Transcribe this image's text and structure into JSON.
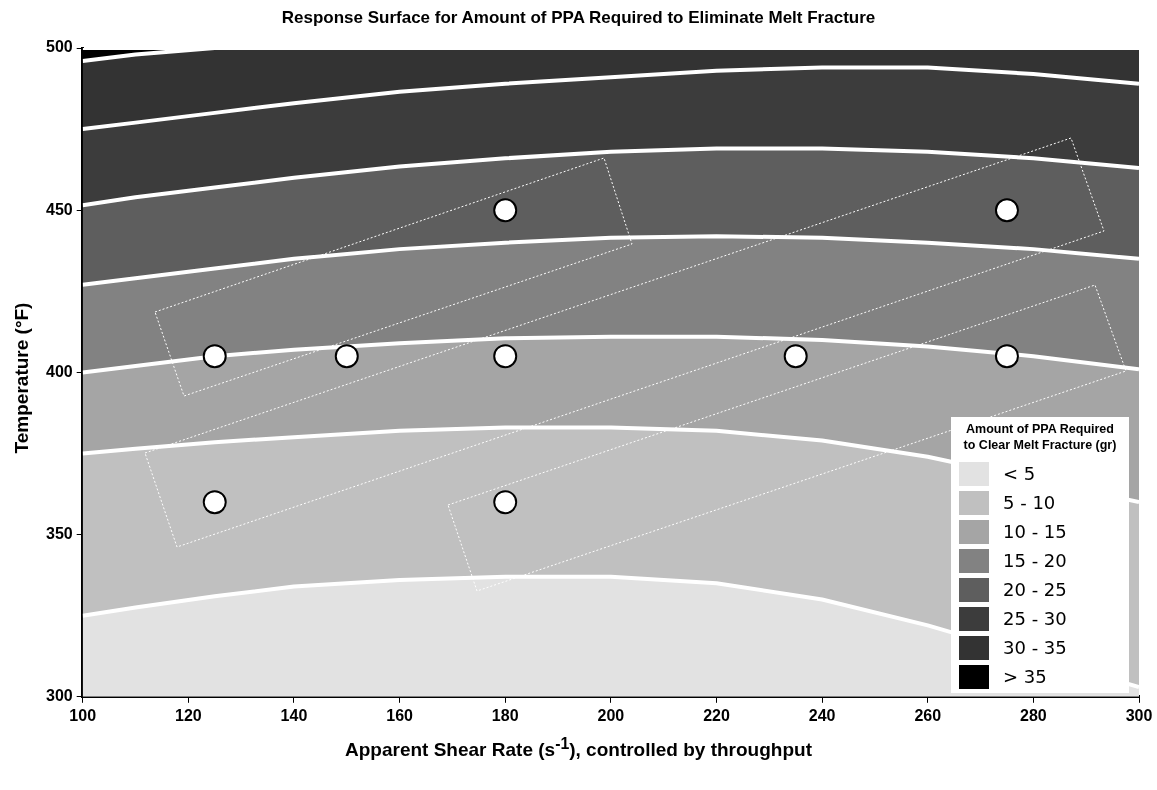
{
  "chart_data": {
    "type": "area",
    "title": "Response Surface for Amount of PPA Required to Eliminate Melt Fracture",
    "xlabel": "Apparent Shear Rate (s$^{-1}$), controlled by throughput",
    "ylabel": "Temperature (°F)",
    "legend_title": "Amount of PPA Required to Clear Melt Fracture (gr)",
    "legend": "bottom right",
    "x": [
      100,
      110,
      125,
      140,
      160,
      180,
      200,
      220,
      240,
      260,
      280,
      300
    ],
    "series": [
      {
        "name": "< 5",
        "color": "#e2e2e2",
        "values": [
          325,
          327.5,
          331,
          334,
          336,
          337,
          337,
          335,
          330,
          322,
          null,
          303
        ]
      },
      {
        "name": "5 - 10",
        "color": "#c0c0c0",
        "values": [
          375,
          376.5,
          378.5,
          380,
          382,
          383,
          383,
          382,
          379,
          374,
          null,
          360
        ]
      },
      {
        "name": "10 - 15",
        "color": "#a5a5a5",
        "values": [
          400,
          402,
          405,
          407,
          409,
          410.5,
          411,
          411,
          410,
          408,
          405,
          401
        ]
      },
      {
        "name": "15 - 20",
        "color": "#828282",
        "values": [
          427,
          429,
          432,
          435,
          438,
          440,
          441.5,
          442,
          441.5,
          440,
          438,
          435
        ]
      },
      {
        "name": "20 - 25",
        "color": "#5e5e5e",
        "values": [
          451.5,
          454,
          457,
          460,
          463.5,
          466,
          468,
          469,
          469,
          468,
          466,
          463
        ]
      },
      {
        "name": "25 - 30",
        "color": "#3c3c3c",
        "values": [
          475,
          477,
          480,
          483,
          486.5,
          489,
          491,
          493,
          494,
          494,
          492,
          489
        ]
      },
      {
        "name": "30 - 35",
        "color": "#333333",
        "values": [
          496,
          498,
          500,
          500,
          500,
          500,
          500,
          500,
          500,
          500,
          500,
          500
        ]
      },
      {
        "name": "> 35",
        "color": "#000000",
        "values": [
          500,
          500,
          500,
          500,
          500,
          500,
          500,
          500,
          500,
          500,
          500,
          500
        ]
      },
      {
        "type": "scatter",
        "color": "#ffffff",
        "marker": "circle",
        "x": [
          125,
          150,
          180,
          235,
          275,
          180,
          275,
          125,
          180
        ],
        "values": [
          405,
          405,
          405,
          405,
          405,
          450,
          450,
          360,
          360
        ]
      }
    ],
    "xlim": [
      100,
      300
    ],
    "xticks": [
      100,
      120,
      140,
      160,
      180,
      200,
      220,
      240,
      260,
      280,
      300
    ],
    "ylim": [
      300,
      500
    ],
    "yticks": [
      300,
      350,
      400,
      450,
      500
    ]
  }
}
